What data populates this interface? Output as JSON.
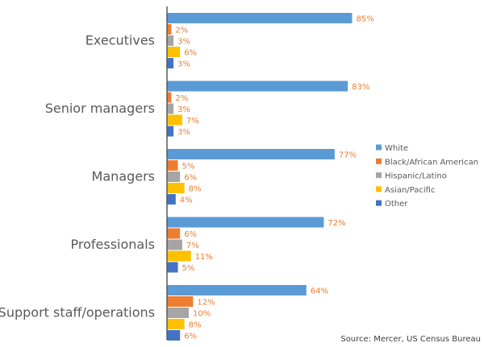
{
  "chart_data": {
    "type": "bar",
    "orientation": "horizontal",
    "categories": [
      "Executives",
      "Senior managers",
      "Managers",
      "Professionals",
      "Support staff/operations"
    ],
    "series": [
      {
        "name": "White",
        "color": "#5b9bd5",
        "values": [
          85,
          83,
          77,
          72,
          64
        ],
        "value_labels": [
          "85%",
          "83%",
          "77%",
          "72%",
          "64%"
        ]
      },
      {
        "name": "Black/African American",
        "color": "#ed7d31",
        "values": [
          2,
          2,
          5,
          6,
          12
        ],
        "value_labels": [
          "2%",
          "2%",
          "5%",
          "6%",
          "12%"
        ]
      },
      {
        "name": "Hispanic/Latino",
        "color": "#a5a5a5",
        "values": [
          3,
          3,
          6,
          7,
          10
        ],
        "value_labels": [
          "3%",
          "3%",
          "6%",
          "7%",
          "10%"
        ]
      },
      {
        "name": "Asian/Pacific",
        "color": "#ffc000",
        "values": [
          6,
          7,
          8,
          11,
          8
        ],
        "value_labels": [
          "6%",
          "7%",
          "8%",
          "11%",
          "8%"
        ]
      },
      {
        "name": "Other",
        "color": "#4472c4",
        "values": [
          3,
          3,
          4,
          5,
          6
        ],
        "value_labels": [
          "3%",
          "3%",
          "4%",
          "5%",
          "6%"
        ]
      }
    ],
    "xlim": [
      0,
      100
    ],
    "source": "Source: Mercer, US Census Bureau"
  }
}
